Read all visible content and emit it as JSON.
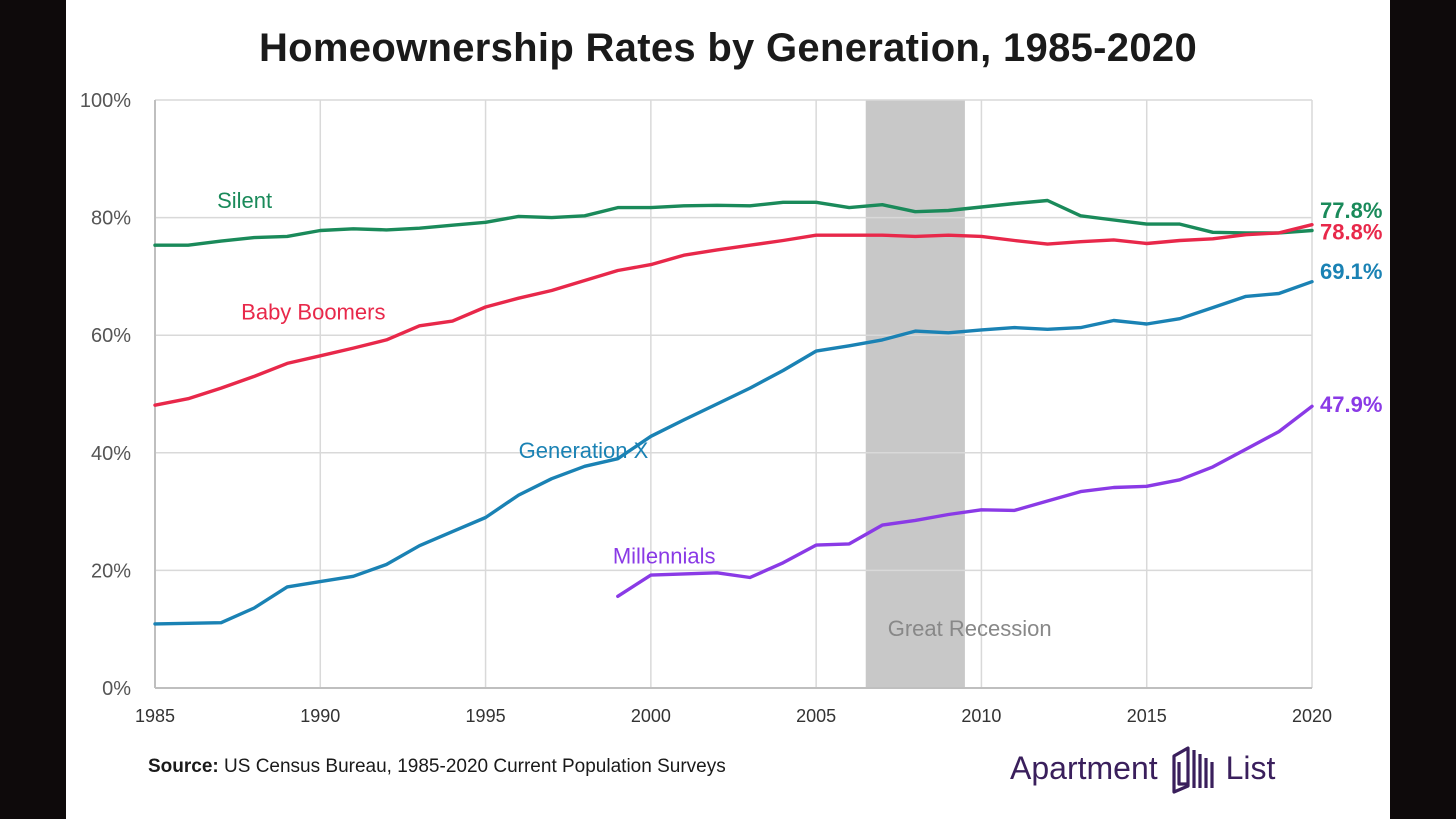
{
  "chart_data": {
    "type": "line",
    "title": "Homeownership Rates by Generation, 1985-2020",
    "xlabel": "",
    "ylabel": "",
    "xlim": [
      1985,
      2020
    ],
    "ylim": [
      0,
      100
    ],
    "x_ticks": [
      1985,
      1990,
      1995,
      2000,
      2005,
      2010,
      2015,
      2020
    ],
    "y_ticks": [
      0,
      20,
      40,
      60,
      80,
      100
    ],
    "y_tick_labels": [
      "0%",
      "20%",
      "40%",
      "60%",
      "80%",
      "100%"
    ],
    "grid": true,
    "shaded_region": {
      "label": "Great Recession",
      "x_start": 2006.5,
      "x_end": 2009.5,
      "color": "#c8c8c8",
      "label_color": "#888888"
    },
    "series": [
      {
        "name": "Silent",
        "color": "#1a8a5a",
        "end_label": "77.8%",
        "x": [
          1985,
          1986,
          1987,
          1988,
          1989,
          1990,
          1991,
          1992,
          1993,
          1994,
          1995,
          1996,
          1997,
          1998,
          1999,
          2000,
          2001,
          2002,
          2003,
          2004,
          2005,
          2006,
          2007,
          2008,
          2009,
          2010,
          2011,
          2012,
          2013,
          2014,
          2015,
          2016,
          2017,
          2018,
          2019,
          2020
        ],
        "values": [
          75.3,
          75.3,
          76.0,
          76.6,
          76.8,
          77.8,
          78.1,
          77.9,
          78.2,
          78.7,
          79.2,
          80.2,
          80.0,
          80.3,
          81.7,
          81.7,
          82.0,
          82.1,
          82.0,
          82.6,
          82.6,
          81.7,
          82.2,
          81.0,
          81.2,
          81.8,
          82.4,
          82.9,
          80.3,
          79.6,
          78.9,
          78.9,
          77.5,
          77.4,
          77.4,
          77.8
        ]
      },
      {
        "name": "Baby Boomers",
        "color": "#e8284a",
        "end_label": "78.8%",
        "x": [
          1985,
          1986,
          1987,
          1988,
          1989,
          1990,
          1991,
          1992,
          1993,
          1994,
          1995,
          1996,
          1997,
          1998,
          1999,
          2000,
          2001,
          2002,
          2003,
          2004,
          2005,
          2006,
          2007,
          2008,
          2009,
          2010,
          2011,
          2012,
          2013,
          2014,
          2015,
          2016,
          2017,
          2018,
          2019,
          2020
        ],
        "values": [
          48.1,
          49.2,
          51.0,
          53.0,
          55.2,
          56.5,
          57.8,
          59.2,
          61.6,
          62.4,
          64.8,
          66.3,
          67.6,
          69.3,
          71.0,
          72.0,
          73.6,
          74.5,
          75.3,
          76.1,
          77.0,
          77.0,
          77.0,
          76.8,
          77.0,
          76.8,
          76.1,
          75.5,
          75.9,
          76.2,
          75.6,
          76.1,
          76.4,
          77.1,
          77.4,
          78.8
        ]
      },
      {
        "name": "Generation X",
        "color": "#1a82b4",
        "end_label": "69.1%",
        "x": [
          1985,
          1986,
          1987,
          1988,
          1989,
          1990,
          1991,
          1992,
          1993,
          1994,
          1995,
          1996,
          1997,
          1998,
          1999,
          2000,
          2001,
          2002,
          2003,
          2004,
          2005,
          2006,
          2007,
          2008,
          2009,
          2010,
          2011,
          2012,
          2013,
          2014,
          2015,
          2016,
          2017,
          2018,
          2019,
          2020
        ],
        "values": [
          10.9,
          11.0,
          11.1,
          13.6,
          17.2,
          18.1,
          19.0,
          21.0,
          24.2,
          26.6,
          29.0,
          32.8,
          35.6,
          37.7,
          39.0,
          42.8,
          45.6,
          48.3,
          51.0,
          54.0,
          57.3,
          58.2,
          59.2,
          60.7,
          60.4,
          60.9,
          61.3,
          61.0,
          61.3,
          62.5,
          61.9,
          62.8,
          64.7,
          66.6,
          67.1,
          69.1
        ]
      },
      {
        "name": "Millennials",
        "color": "#8a3ae6",
        "end_label": "47.9%",
        "x": [
          1999,
          2000,
          2001,
          2002,
          2003,
          2004,
          2005,
          2006,
          2007,
          2008,
          2009,
          2010,
          2011,
          2012,
          2013,
          2014,
          2015,
          2016,
          2017,
          2018,
          2019,
          2020
        ],
        "values": [
          15.6,
          19.2,
          19.4,
          19.6,
          18.8,
          21.3,
          24.3,
          24.5,
          27.7,
          28.5,
          29.5,
          30.3,
          30.2,
          31.8,
          33.4,
          34.1,
          34.3,
          35.4,
          37.6,
          40.6,
          43.6,
          47.9
        ]
      }
    ]
  },
  "footer": {
    "source_label": "Source:",
    "source_text": " US Census Bureau, 1985-2020 Current Population Surveys",
    "brand_left": "Apartment",
    "brand_right": "List",
    "brand_color": "#3a1f5c"
  }
}
